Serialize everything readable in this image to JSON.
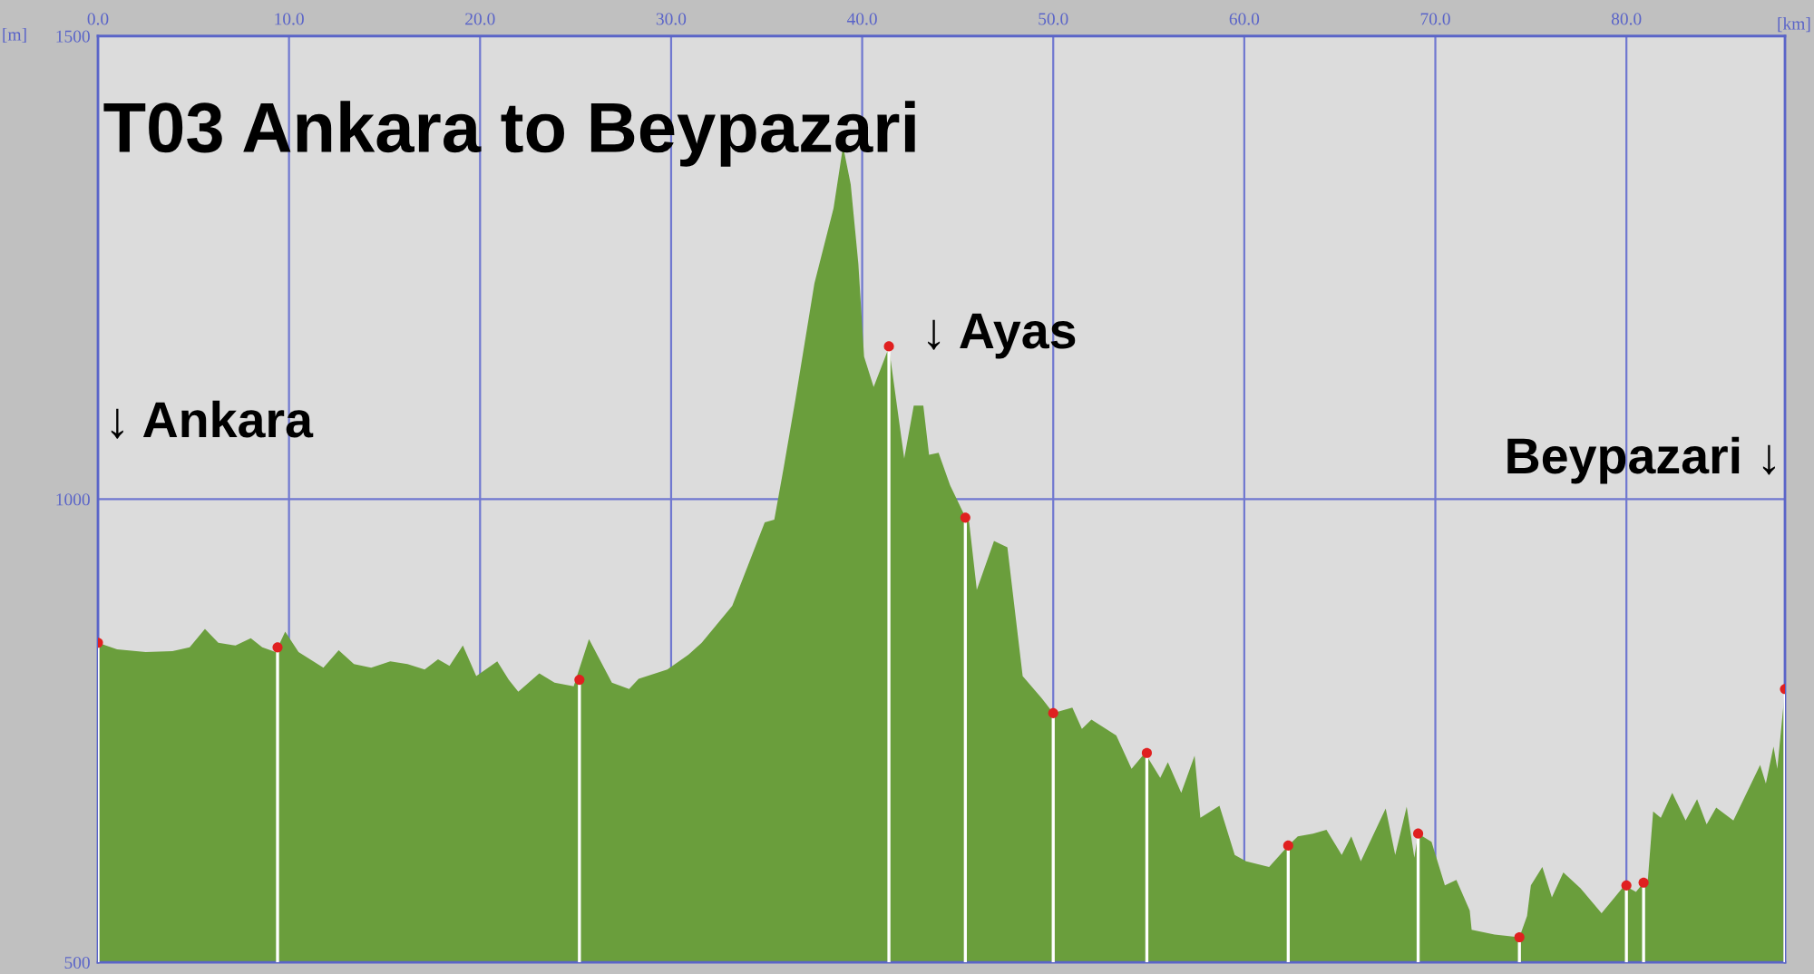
{
  "chart_data": {
    "type": "area",
    "title": "T03 Ankara to Beypazari",
    "xlabel": "[km]",
    "ylabel": "[m]",
    "xlim": [
      0,
      88.3
    ],
    "ylim": [
      500,
      1500
    ],
    "xticks": [
      {
        "value": 0,
        "label": "0.0"
      },
      {
        "value": 10,
        "label": "10.0"
      },
      {
        "value": 20,
        "label": "20.0"
      },
      {
        "value": 30,
        "label": "30.0"
      },
      {
        "value": 40,
        "label": "40.0"
      },
      {
        "value": 50,
        "label": "50.0"
      },
      {
        "value": 60,
        "label": "60.0"
      },
      {
        "value": 70,
        "label": "70.0"
      },
      {
        "value": 80,
        "label": "80.0"
      }
    ],
    "yticks": [
      500,
      1000,
      1500
    ],
    "grid": true,
    "annotations": [
      "↓ Ankara",
      "↓ Ayas",
      "Beypazari ↓"
    ],
    "series": [
      {
        "color": "#6a9e3c",
        "x": [
          0.0,
          1.0,
          2.5,
          3.9,
          4.8,
          5.6,
          6.3,
          7.2,
          8.0,
          8.6,
          9.3,
          9.8,
          10.5,
          11.8,
          12.6,
          13.4,
          14.3,
          15.3,
          16.2,
          17.1,
          17.8,
          18.4,
          19.1,
          19.8,
          20.9,
          21.5,
          22.0,
          23.1,
          23.9,
          24.9,
          25.7,
          26.9,
          27.8,
          28.3,
          29.8,
          30.9,
          31.6,
          33.2,
          34.9,
          35.4,
          35.9,
          36.5,
          37.5,
          38.5,
          39.0,
          39.4,
          39.8,
          40.1,
          40.6,
          41.4,
          42.2,
          42.7,
          43.2,
          43.5,
          44.0,
          44.6,
          45.3,
          45.6,
          46.0,
          46.9,
          47.6,
          48.4,
          49.4,
          50.0,
          51.0,
          51.5,
          52.0,
          53.3,
          54.1,
          54.8,
          55.6,
          56.0,
          56.7,
          57.4,
          57.7,
          58.7,
          59.5,
          60.1,
          61.3,
          62.3,
          62.8,
          63.6,
          64.3,
          65.1,
          65.6,
          66.1,
          67.4,
          67.9,
          68.5,
          68.9,
          69.1,
          69.8,
          70.5,
          71.1,
          71.8,
          71.9,
          73.1,
          74.4,
          74.8,
          75.0,
          75.6,
          76.1,
          76.7,
          77.6,
          78.7,
          79.9,
          80.5,
          80.9,
          81.1,
          81.4,
          81.8,
          82.4,
          83.1,
          83.7,
          84.2,
          84.7,
          85.6,
          87.0,
          87.3,
          87.7,
          87.9,
          88.3
        ],
        "values": [
          845,
          838,
          835,
          836,
          840,
          860,
          845,
          842,
          850,
          840,
          835,
          857,
          835,
          818,
          837,
          822,
          818,
          825,
          822,
          816,
          827,
          820,
          842,
          809,
          825,
          805,
          792,
          812,
          802,
          798,
          849,
          802,
          795,
          806,
          816,
          832,
          845,
          885,
          975,
          978,
          1035,
          1107,
          1233,
          1314,
          1381,
          1340,
          1254,
          1154,
          1121,
          1164,
          1044,
          1101,
          1101,
          1048,
          1050,
          1015,
          985,
          975,
          902,
          955,
          948,
          809,
          785,
          769,
          775,
          752,
          762,
          745,
          709,
          726,
          699,
          716,
          683,
          723,
          656,
          669,
          616,
          609,
          603,
          626,
          636,
          639,
          643,
          616,
          636,
          609,
          666,
          616,
          668,
          613,
          639,
          630,
          583,
          589,
          556,
          535,
          530,
          527,
          550,
          583,
          603,
          570,
          597,
          580,
          553,
          583,
          576,
          586,
          583,
          663,
          656,
          683,
          653,
          676,
          649,
          667,
          653,
          713,
          693,
          733,
          709,
          795
        ]
      },
      {
        "type": "lollipop",
        "color": "#e02020",
        "marker": "circle",
        "x": [
          0.0,
          9.4,
          25.2,
          41.4,
          45.4,
          50.0,
          54.9,
          62.3,
          69.1,
          74.4,
          80.0,
          80.9,
          88.3
        ],
        "values": [
          845,
          840,
          805,
          1165,
          980,
          769,
          726,
          626,
          639,
          527,
          583,
          586,
          795
        ]
      }
    ]
  }
}
